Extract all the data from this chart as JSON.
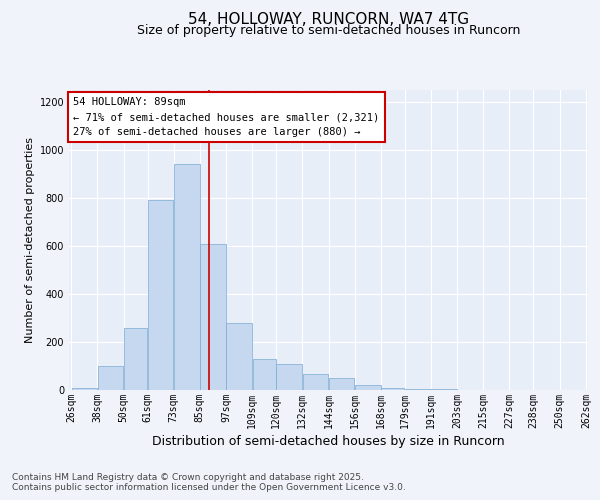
{
  "title_line1": "54, HOLLOWAY, RUNCORN, WA7 4TG",
  "title_line2": "Size of property relative to semi-detached houses in Runcorn",
  "xlabel": "Distribution of semi-detached houses by size in Runcorn",
  "ylabel": "Number of semi-detached properties",
  "footer_line1": "Contains HM Land Registry data © Crown copyright and database right 2025.",
  "footer_line2": "Contains public sector information licensed under the Open Government Licence v3.0.",
  "annotation_line1": "54 HOLLOWAY: 89sqm",
  "annotation_line2": "← 71% of semi-detached houses are smaller (2,321)",
  "annotation_line3": "27% of semi-detached houses are larger (880) →",
  "bar_left_edges": [
    26,
    38,
    50,
    61,
    73,
    85,
    97,
    109,
    120,
    132,
    144,
    156,
    168,
    179,
    191,
    203,
    215,
    227,
    238,
    250
  ],
  "bar_widths": [
    12,
    12,
    11,
    12,
    12,
    12,
    12,
    11,
    12,
    12,
    12,
    12,
    11,
    12,
    12,
    12,
    12,
    11,
    12,
    12
  ],
  "bar_heights": [
    10,
    100,
    260,
    790,
    940,
    610,
    280,
    130,
    110,
    65,
    50,
    20,
    10,
    5,
    5,
    2,
    2,
    1,
    1,
    1
  ],
  "bar_color": "#c5d8f0",
  "bar_edge_color": "#7aaad4",
  "vline_color": "#cc0000",
  "vline_x": 89,
  "ylim": [
    0,
    1250
  ],
  "yticks": [
    0,
    200,
    400,
    600,
    800,
    1000,
    1200
  ],
  "background_color": "#f0f4fa",
  "plot_background": "#e8eef8",
  "grid_color": "#ffffff",
  "annotation_box_color": "#ffffff",
  "annotation_border_color": "#cc0000",
  "title_fontsize": 11,
  "subtitle_fontsize": 9,
  "tick_fontsize": 7,
  "ylabel_fontsize": 8,
  "xlabel_fontsize": 9,
  "footer_fontsize": 6.5,
  "annotation_fontsize": 7.5,
  "xtick_labels": [
    "26sqm",
    "38sqm",
    "50sqm",
    "61sqm",
    "73sqm",
    "85sqm",
    "97sqm",
    "109sqm",
    "120sqm",
    "132sqm",
    "144sqm",
    "156sqm",
    "168sqm",
    "179sqm",
    "191sqm",
    "203sqm",
    "215sqm",
    "227sqm",
    "238sqm",
    "250sqm",
    "262sqm"
  ]
}
